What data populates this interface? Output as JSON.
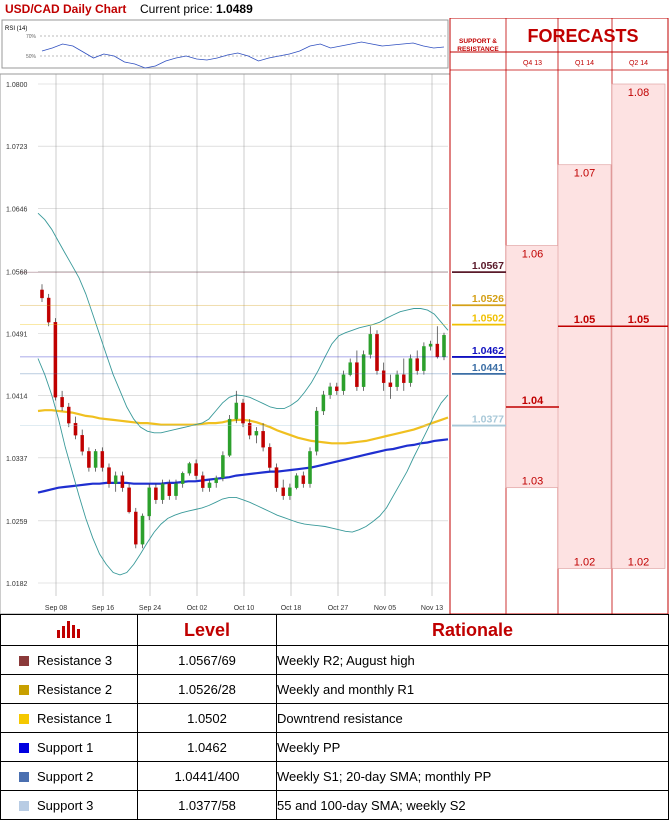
{
  "header": {
    "title": "USD/CAD Daily Chart",
    "price_label": "Current price:",
    "price_value": "1.0489"
  },
  "rsi": {
    "label": "RSI (14)",
    "levels": [
      "70%",
      "50%"
    ],
    "values": [
      55,
      58,
      62,
      60,
      54,
      48,
      52,
      50,
      44,
      42,
      38,
      40,
      45,
      48,
      50,
      47,
      46,
      48,
      51,
      53,
      50,
      45,
      48,
      50,
      52,
      55,
      60,
      62,
      58,
      60,
      62,
      64,
      62,
      60,
      61,
      62,
      63,
      60,
      58,
      59
    ]
  },
  "chart": {
    "y_ticks": [
      "1.0800",
      "1.0723",
      "1.0646",
      "1.0568",
      "1.0491",
      "1.0414",
      "1.0337",
      "1.0259",
      "1.0182"
    ],
    "x_ticks": [
      "Sep 08",
      "Sep 16",
      "Sep 24",
      "Oct 02",
      "Oct 10",
      "Oct 18",
      "Oct 27",
      "Nov 05",
      "Nov 13"
    ],
    "y_min": 1.0182,
    "y_max": 1.08,
    "colors": {
      "up": "#2ca02c",
      "down": "#c00000",
      "sma100": "#1f2fd0",
      "sma55": "#f0c020",
      "bollinger": "#3a9a9a",
      "sma20": "#d8d8d8"
    }
  },
  "chart_data": {
    "type": "candlestick",
    "ohlc": [
      [
        1.0545,
        1.0552,
        1.053,
        1.0535
      ],
      [
        1.0535,
        1.054,
        1.05,
        1.0505
      ],
      [
        1.0505,
        1.051,
        1.0408,
        1.0412
      ],
      [
        1.0412,
        1.042,
        1.0395,
        1.04
      ],
      [
        1.04,
        1.0405,
        1.0375,
        1.038
      ],
      [
        1.038,
        1.0388,
        1.036,
        1.0365
      ],
      [
        1.0365,
        1.0372,
        1.034,
        1.0345
      ],
      [
        1.0345,
        1.035,
        1.032,
        1.0325
      ],
      [
        1.0325,
        1.0348,
        1.032,
        1.0345
      ],
      [
        1.0345,
        1.035,
        1.032,
        1.0325
      ],
      [
        1.0325,
        1.033,
        1.03,
        1.0305
      ],
      [
        1.0305,
        1.032,
        1.0295,
        1.0315
      ],
      [
        1.0315,
        1.032,
        1.0295,
        1.03
      ],
      [
        1.03,
        1.0305,
        1.0268,
        1.027
      ],
      [
        1.027,
        1.0275,
        1.0225,
        1.023
      ],
      [
        1.023,
        1.0268,
        1.0225,
        1.0265
      ],
      [
        1.0265,
        1.0305,
        1.026,
        1.03
      ],
      [
        1.03,
        1.0305,
        1.028,
        1.0285
      ],
      [
        1.0285,
        1.031,
        1.028,
        1.0305
      ],
      [
        1.0305,
        1.031,
        1.0285,
        1.029
      ],
      [
        1.029,
        1.031,
        1.0285,
        1.0305
      ],
      [
        1.0305,
        1.032,
        1.03,
        1.0318
      ],
      [
        1.0318,
        1.0332,
        1.0315,
        1.033
      ],
      [
        1.033,
        1.0335,
        1.031,
        1.0315
      ],
      [
        1.0315,
        1.032,
        1.0295,
        1.03
      ],
      [
        1.03,
        1.031,
        1.0295,
        1.0306
      ],
      [
        1.0306,
        1.0315,
        1.03,
        1.0312
      ],
      [
        1.0312,
        1.0345,
        1.0308,
        1.034
      ],
      [
        1.034,
        1.039,
        1.0338,
        1.0385
      ],
      [
        1.0385,
        1.042,
        1.038,
        1.0405
      ],
      [
        1.0405,
        1.041,
        1.0375,
        1.038
      ],
      [
        1.038,
        1.0385,
        1.036,
        1.0365
      ],
      [
        1.0365,
        1.0375,
        1.0355,
        1.037
      ],
      [
        1.037,
        1.038,
        1.0345,
        1.035
      ],
      [
        1.035,
        1.0355,
        1.032,
        1.0325
      ],
      [
        1.0325,
        1.033,
        1.0295,
        1.03
      ],
      [
        1.03,
        1.031,
        1.0285,
        1.029
      ],
      [
        1.029,
        1.0305,
        1.0285,
        1.03
      ],
      [
        1.03,
        1.0318,
        1.0298,
        1.0315
      ],
      [
        1.0315,
        1.032,
        1.03,
        1.0305
      ],
      [
        1.0305,
        1.035,
        1.03,
        1.0345
      ],
      [
        1.0345,
        1.04,
        1.034,
        1.0395
      ],
      [
        1.0395,
        1.042,
        1.039,
        1.0415
      ],
      [
        1.0415,
        1.043,
        1.041,
        1.0425
      ],
      [
        1.0425,
        1.043,
        1.0415,
        1.042
      ],
      [
        1.042,
        1.0445,
        1.0415,
        1.044
      ],
      [
        1.044,
        1.046,
        1.0438,
        1.0455
      ],
      [
        1.0455,
        1.047,
        1.042,
        1.0425
      ],
      [
        1.0425,
        1.047,
        1.042,
        1.0465
      ],
      [
        1.0465,
        1.05,
        1.046,
        1.049
      ],
      [
        1.049,
        1.0495,
        1.044,
        1.0445
      ],
      [
        1.0445,
        1.0455,
        1.042,
        1.043
      ],
      [
        1.043,
        1.044,
        1.041,
        1.0425
      ],
      [
        1.0425,
        1.0445,
        1.042,
        1.044
      ],
      [
        1.044,
        1.046,
        1.042,
        1.043
      ],
      [
        1.043,
        1.0465,
        1.0425,
        1.046
      ],
      [
        1.046,
        1.047,
        1.044,
        1.0445
      ],
      [
        1.0445,
        1.048,
        1.044,
        1.0475
      ],
      [
        1.0475,
        1.0482,
        1.047,
        1.0478
      ],
      [
        1.0478,
        1.05,
        1.046,
        1.0462
      ],
      [
        1.0462,
        1.0492,
        1.0458,
        1.0489
      ]
    ],
    "series": [
      {
        "values": [
          1.0294,
          1.0296,
          1.0298,
          1.03,
          1.0301,
          1.0302,
          1.0303,
          1.0304,
          1.0305,
          1.0305,
          1.0306,
          1.0306,
          1.0306,
          1.0306,
          1.0305,
          1.0305,
          1.0305,
          1.0305,
          1.0305,
          1.0306,
          1.0306,
          1.0307,
          1.0308,
          1.0308,
          1.0309,
          1.031,
          1.0311,
          1.0312,
          1.0313,
          1.0315,
          1.0316,
          1.0317,
          1.0318,
          1.0319,
          1.032,
          1.032,
          1.0321,
          1.0322,
          1.0323,
          1.0324,
          1.0325,
          1.0327,
          1.0329,
          1.0331,
          1.0333,
          1.0335,
          1.0337,
          1.0339,
          1.0341,
          1.0343,
          1.0345,
          1.0347,
          1.0348,
          1.035,
          1.0352,
          1.0353,
          1.0355,
          1.0356,
          1.0358,
          1.0359,
          1.036
        ]
      },
      {
        "values": [
          1.0395,
          1.0396,
          1.0396,
          1.0395,
          1.0394,
          1.0393,
          1.0391,
          1.0389,
          1.0388,
          1.0386,
          1.0385,
          1.0384,
          1.0383,
          1.0382,
          1.0381,
          1.038,
          1.038,
          1.0379,
          1.0378,
          1.0378,
          1.0378,
          1.0378,
          1.0378,
          1.0378,
          1.0379,
          1.038,
          1.038,
          1.0381,
          1.0383,
          1.0384,
          1.0384,
          1.0383,
          1.0381,
          1.0378,
          1.0375,
          1.0371,
          1.0368,
          1.0365,
          1.0362,
          1.036,
          1.0358,
          1.0357,
          1.0356,
          1.0355,
          1.0355,
          1.0355,
          1.0356,
          1.0357,
          1.0358,
          1.036,
          1.0362,
          1.0364,
          1.0366,
          1.0368,
          1.037,
          1.0372,
          1.0375,
          1.0378,
          1.0381,
          1.0384,
          1.0387
        ]
      },
      {
        "values": [
          1.064,
          1.0632,
          1.062,
          1.0605,
          1.059,
          1.0575,
          1.056,
          1.054,
          1.0515,
          1.049,
          1.0465,
          1.044,
          1.042,
          1.04,
          1.0385,
          1.0375,
          1.037,
          1.0368,
          1.0368,
          1.037,
          1.0372,
          1.0374,
          1.0376,
          1.0378,
          1.038,
          1.0385,
          1.0395,
          1.0405,
          1.0412,
          1.0415,
          1.0414,
          1.0412,
          1.0408,
          1.0404,
          1.04,
          1.0398,
          1.0398,
          1.0402,
          1.0408,
          1.0418,
          1.043,
          1.0445,
          1.0462,
          1.0478,
          1.0488,
          1.0492,
          1.0495,
          1.0498,
          1.05,
          1.0502,
          1.0505,
          1.051,
          1.0514,
          1.0518,
          1.052,
          1.0522,
          1.0522,
          1.052,
          1.0515,
          1.0505,
          1.0495
        ]
      },
      {
        "values": [
          1.046,
          1.044,
          1.0415,
          1.0385,
          1.035,
          1.032,
          1.029,
          1.0262,
          1.0238,
          1.0218,
          1.0205,
          1.0195,
          1.0192,
          1.0195,
          1.0205,
          1.0218,
          1.0232,
          1.0245,
          1.0255,
          1.0262,
          1.0266,
          1.0269,
          1.0271,
          1.0273,
          1.0275,
          1.0278,
          1.0282,
          1.0286,
          1.0288,
          1.0288,
          1.0285,
          1.0282,
          1.0278,
          1.0274,
          1.027,
          1.0266,
          1.0263,
          1.026,
          1.0257,
          1.0255,
          1.0254,
          1.0253,
          1.0252,
          1.025,
          1.0248,
          1.0246,
          1.0245,
          1.0248,
          1.0252,
          1.0258,
          1.0265,
          1.0275,
          1.029,
          1.0305,
          1.032,
          1.0338,
          1.0355,
          1.0372,
          1.039,
          1.0405,
          1.0415
        ]
      }
    ]
  },
  "forecasts": {
    "support_resistance_label": "SUPPORT & RESISTANCE",
    "title": "FORECASTS",
    "columns": [
      "Q4 13",
      "Q1 14",
      "Q2 14"
    ],
    "range_top": 1.085,
    "range_bottom": 1.0182,
    "values": [
      {
        "label": "1.06",
        "top": 1.06,
        "bottom": 1.03,
        "bold": "1.04",
        "boldVal": 1.04
      },
      {
        "label": "1.07",
        "top": 1.07,
        "bottom": 1.02,
        "bold": "1.05",
        "boldVal": 1.05
      },
      {
        "label": "1.08",
        "top": 1.08,
        "bottom": 1.02,
        "bold": "1.05",
        "boldVal": 1.05
      }
    ],
    "bottoms": [
      "1.03",
      "1.02",
      "1.02"
    ],
    "levels": [
      {
        "label": "1.0567",
        "value": 1.0567,
        "color": "#5a1a2a"
      },
      {
        "label": "1.0526",
        "value": 1.0526,
        "color": "#d4a017"
      },
      {
        "label": "1.0502",
        "value": 1.0502,
        "color": "#f0c000"
      },
      {
        "label": "1.0462",
        "value": 1.0462,
        "color": "#1010c0"
      },
      {
        "label": "1.0441",
        "value": 1.0441,
        "color": "#3b6ea5"
      },
      {
        "label": "1.0377",
        "value": 1.0377,
        "color": "#a8c8d8"
      }
    ]
  },
  "table": {
    "headers": [
      "Level",
      "Rationale"
    ],
    "rows": [
      {
        "name": "Resistance 3",
        "level": "1.0567/69",
        "rationale": "Weekly R2; August high",
        "color": "#8b3a3a"
      },
      {
        "name": "Resistance 2",
        "level": "1.0526/28",
        "rationale": "Weekly and monthly R1",
        "color": "#c8a000"
      },
      {
        "name": "Resistance 1",
        "level": "1.0502",
        "rationale": "Downtrend resistance",
        "color": "#f5c800"
      },
      {
        "name": "Support 1",
        "level": "1.0462",
        "rationale": "Weekly PP",
        "color": "#0000e0"
      },
      {
        "name": "Support 2",
        "level": "1.0441/400",
        "rationale": "Weekly S1; 20-day SMA; monthly PP",
        "color": "#4a6fb0"
      },
      {
        "name": "Support 3",
        "level": "1.0377/58",
        "rationale": "55 and 100-day SMA; weekly S2",
        "color": "#b8cce4"
      }
    ]
  }
}
